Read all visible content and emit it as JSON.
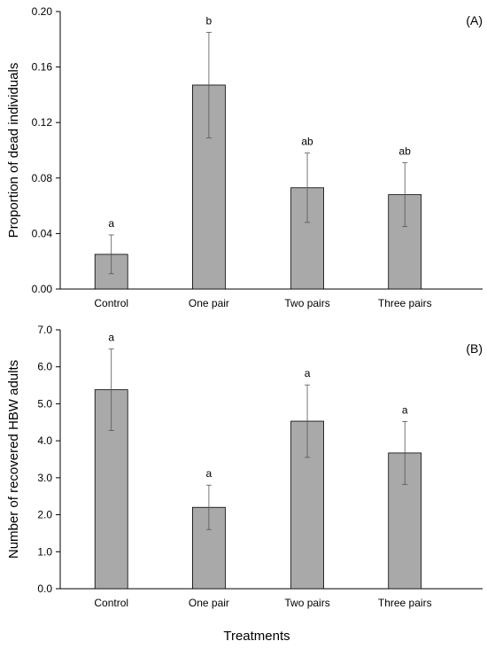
{
  "chart_data": [
    {
      "type": "bar",
      "panel_label": "(A)",
      "categories": [
        "Control",
        "One pair",
        "Two pairs",
        "Three pairs"
      ],
      "values": [
        0.025,
        0.147,
        0.073,
        0.068
      ],
      "errors": [
        0.014,
        0.038,
        0.025,
        0.023
      ],
      "letters": [
        "a",
        "b",
        "ab",
        "ab"
      ],
      "ylabel": "Proportion of dead individuals",
      "ylim": [
        0,
        0.2
      ],
      "yticks": [
        "0.00",
        "0.04",
        "0.08",
        "0.12",
        "0.16",
        "0.20"
      ],
      "bar_color": "#a9a9a9",
      "grid": false
    },
    {
      "type": "bar",
      "panel_label": "(B)",
      "categories": [
        "Control",
        "One pair",
        "Two pairs",
        "Three pairs"
      ],
      "values": [
        5.38,
        2.2,
        4.53,
        3.67
      ],
      "errors": [
        1.1,
        0.6,
        0.98,
        0.85
      ],
      "letters": [
        "a",
        "a",
        "a",
        "a"
      ],
      "ylabel": "Number of recovered HBW adults",
      "ylim": [
        0,
        7
      ],
      "yticks": [
        "0.0",
        "1.0",
        "2.0",
        "3.0",
        "4.0",
        "5.0",
        "6.0",
        "7.0"
      ],
      "bar_color": "#a9a9a9",
      "grid": false
    }
  ],
  "shared_xlabel": "Treatments"
}
